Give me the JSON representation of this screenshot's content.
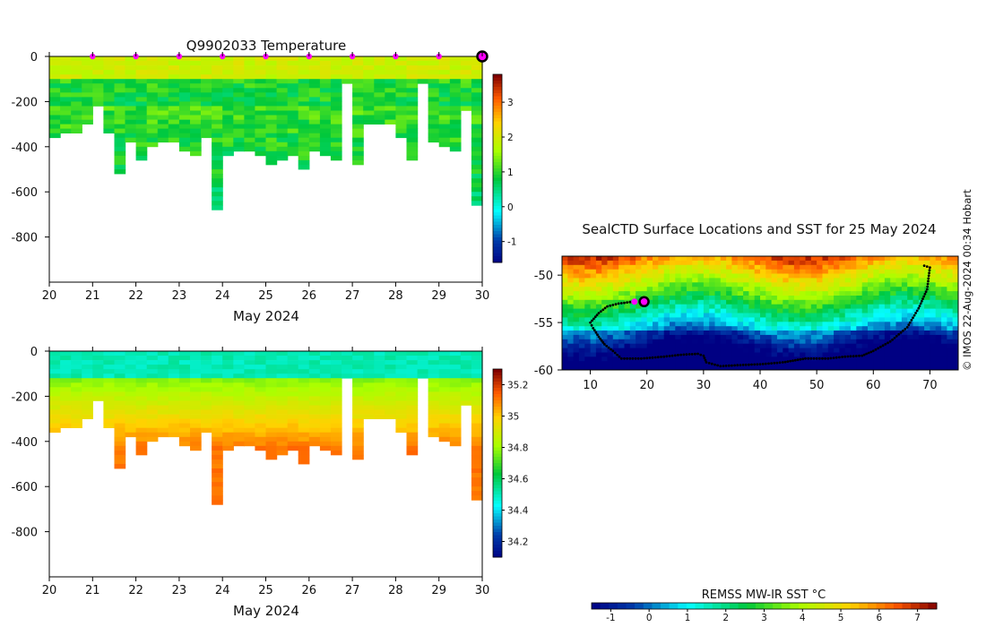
{
  "chart_data": [
    {
      "type": "heatmap",
      "title": "Q9902033  Temperature",
      "xlabel": "May 2024",
      "ylabel": "",
      "x_ticks": [
        "20",
        "21",
        "22",
        "23",
        "24",
        "25",
        "26",
        "27",
        "28",
        "29",
        "30"
      ],
      "y_ticks": [
        "0",
        "-200",
        "-400",
        "-600",
        "-800"
      ],
      "xlim": [
        20,
        30
      ],
      "ylim": [
        -1000,
        0
      ],
      "colorbar_ticks": [
        "3",
        "2",
        "1",
        "0",
        "-1"
      ],
      "colorbar_range": [
        -1.6,
        3.8
      ],
      "surface_marker_days": [
        21,
        22,
        23,
        24,
        25,
        26,
        27,
        28,
        29
      ],
      "latest_profile_day": 30
    },
    {
      "type": "heatmap",
      "title": "",
      "xlabel": "May 2024",
      "ylabel": "",
      "x_ticks": [
        "20",
        "21",
        "22",
        "23",
        "24",
        "25",
        "26",
        "27",
        "28",
        "29",
        "30"
      ],
      "y_ticks": [
        "0",
        "-200",
        "-400",
        "-600",
        "-800"
      ],
      "xlim": [
        20,
        30
      ],
      "ylim": [
        -1000,
        0
      ],
      "colorbar_ticks": [
        "35.2",
        "35",
        "34.8",
        "34.6",
        "34.4",
        "34.2"
      ],
      "colorbar_range": [
        34.1,
        35.3
      ]
    },
    {
      "type": "heatmap",
      "title": "SealCTD Surface Locations and SST for 25 May 2024",
      "xlabel": "",
      "ylabel": "",
      "x_ticks": [
        "10",
        "20",
        "30",
        "40",
        "50",
        "60",
        "70"
      ],
      "y_ticks": [
        "-50",
        "-55",
        "-60"
      ],
      "xlim": [
        5,
        75
      ],
      "ylim": [
        -60,
        -48
      ],
      "colorbar_label": "REMSS MW-IR SST °C",
      "colorbar_ticks": [
        "-1",
        "0",
        "1",
        "2",
        "3",
        "4",
        "5",
        "6",
        "7"
      ],
      "colorbar_range": [
        -1.5,
        7.5
      ],
      "track_lon": [
        69,
        70,
        69.5,
        68,
        66,
        63,
        60,
        58,
        55,
        52,
        48,
        44,
        40,
        36,
        33,
        30.5,
        30,
        29,
        26,
        23,
        19,
        15.5,
        14,
        12.5,
        11.5,
        10.5,
        10,
        11.5,
        13,
        15,
        17.5
      ],
      "track_lat": [
        -49,
        -49.2,
        -51.5,
        -53.5,
        -55.5,
        -57,
        -58,
        -58.5,
        -58.6,
        -58.8,
        -58.8,
        -59.2,
        -59.4,
        -59.5,
        -59.6,
        -59.2,
        -58.5,
        -58.3,
        -58.4,
        -58.6,
        -58.8,
        -58.8,
        -58.0,
        -57.3,
        -56.5,
        -55.6,
        -55,
        -54,
        -53.3,
        -53.0,
        -52.8
      ],
      "current_position": {
        "lon": 19.5,
        "lat": -52.8
      },
      "previous_position": {
        "lon": 17.8,
        "lat": -52.8
      }
    }
  ],
  "credit": "© IMOS 22-Aug-2024 00:34 Hobart"
}
